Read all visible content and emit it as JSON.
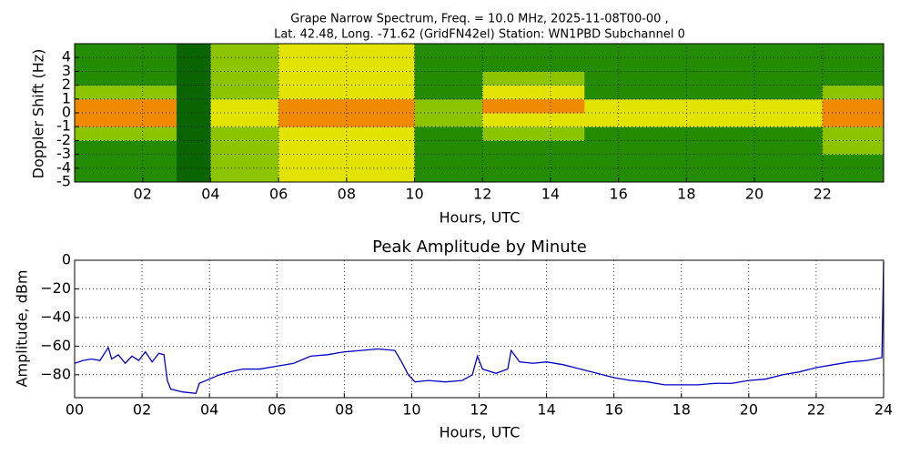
{
  "chart_data": [
    {
      "type": "heatmap",
      "title": [
        "Grape Narrow Spectrum, Freq. = 10.0 MHz, 2025-11-08T00-00 ,",
        "Lat.  42.48, Long. -71.62 (GridFN42el) Station: WN1PBD Subchannel 0"
      ],
      "xlabel": "Hours, UTC",
      "ylabel": "Doppler Shift (Hz)",
      "xlim": [
        0,
        23.8
      ],
      "ylim": [
        -5,
        5
      ],
      "xticks": [
        {
          "value": 2,
          "label": "02"
        },
        {
          "value": 4,
          "label": "04"
        },
        {
          "value": 6,
          "label": "06"
        },
        {
          "value": 8,
          "label": "08"
        },
        {
          "value": 10,
          "label": "10"
        },
        {
          "value": 12,
          "label": "12"
        },
        {
          "value": 14,
          "label": "14"
        },
        {
          "value": 16,
          "label": "16"
        },
        {
          "value": 18,
          "label": "18"
        },
        {
          "value": 20,
          "label": "20"
        },
        {
          "value": 22,
          "label": "22"
        }
      ],
      "yticks": [
        -5,
        -4,
        -3,
        -2,
        -1,
        0,
        1,
        2,
        3,
        4
      ],
      "x_bins": [
        0,
        1,
        2,
        3,
        4,
        5,
        6,
        7,
        8,
        9,
        10,
        11,
        12,
        13,
        14,
        15,
        16,
        17,
        18,
        19,
        20,
        21,
        22,
        23,
        23.8
      ],
      "y_bins": [
        -5,
        -4,
        -3,
        -2,
        -1,
        0,
        1,
        2,
        3,
        4,
        5
      ],
      "colors": [
        "#0a6400",
        "#238c00",
        "#8cc400",
        "#e2e400",
        "#f08a00"
      ],
      "grid": true,
      "values": [
        [
          1,
          1,
          1,
          0,
          2,
          2,
          3,
          3,
          3,
          3,
          1,
          1,
          1,
          1,
          1,
          1,
          1,
          1,
          1,
          1,
          1,
          1,
          1,
          1
        ],
        [
          1,
          1,
          1,
          0,
          2,
          2,
          3,
          3,
          3,
          3,
          1,
          1,
          1,
          1,
          1,
          1,
          1,
          1,
          1,
          1,
          1,
          1,
          1,
          1
        ],
        [
          1,
          1,
          1,
          0,
          2,
          2,
          3,
          3,
          3,
          3,
          1,
          1,
          1,
          1,
          1,
          1,
          1,
          1,
          1,
          1,
          1,
          1,
          2,
          2
        ],
        [
          2,
          2,
          2,
          0,
          2,
          2,
          3,
          3,
          3,
          3,
          1,
          1,
          2,
          2,
          2,
          1,
          1,
          1,
          1,
          1,
          1,
          1,
          2,
          2
        ],
        [
          4,
          4,
          4,
          0,
          3,
          3,
          4,
          4,
          4,
          4,
          2,
          2,
          3,
          3,
          3,
          3,
          3,
          3,
          3,
          3,
          3,
          3,
          4,
          4
        ],
        [
          4,
          4,
          4,
          0,
          3,
          3,
          4,
          4,
          4,
          4,
          2,
          2,
          4,
          4,
          4,
          3,
          3,
          3,
          3,
          3,
          3,
          3,
          4,
          4
        ],
        [
          2,
          2,
          2,
          0,
          2,
          2,
          3,
          3,
          3,
          3,
          1,
          1,
          3,
          3,
          3,
          1,
          1,
          1,
          1,
          1,
          1,
          1,
          2,
          2
        ],
        [
          1,
          1,
          1,
          0,
          2,
          2,
          3,
          3,
          3,
          3,
          1,
          1,
          2,
          2,
          2,
          1,
          1,
          1,
          1,
          1,
          1,
          1,
          1,
          1
        ],
        [
          1,
          1,
          1,
          0,
          2,
          2,
          3,
          3,
          3,
          3,
          1,
          1,
          1,
          1,
          1,
          1,
          1,
          1,
          1,
          1,
          1,
          1,
          1,
          1
        ],
        [
          1,
          1,
          1,
          0,
          2,
          2,
          3,
          3,
          3,
          3,
          1,
          1,
          1,
          1,
          1,
          1,
          1,
          1,
          1,
          1,
          1,
          1,
          1,
          1
        ]
      ]
    },
    {
      "type": "line",
      "title": "Peak Amplitude by Minute",
      "xlabel": "Hours, UTC",
      "ylabel": "Amplitude, dBm",
      "xlim": [
        0,
        24
      ],
      "ylim": [
        -96,
        0
      ],
      "xticks": [
        {
          "value": 0,
          "label": "00"
        },
        {
          "value": 2,
          "label": "02"
        },
        {
          "value": 4,
          "label": "04"
        },
        {
          "value": 6,
          "label": "06"
        },
        {
          "value": 8,
          "label": "08"
        },
        {
          "value": 10,
          "label": "10"
        },
        {
          "value": 12,
          "label": "12"
        },
        {
          "value": 14,
          "label": "14"
        },
        {
          "value": 16,
          "label": "16"
        },
        {
          "value": 18,
          "label": "18"
        },
        {
          "value": 20,
          "label": "20"
        },
        {
          "value": 22,
          "label": "22"
        },
        {
          "value": 24,
          "label": "24"
        }
      ],
      "yticks": [
        0,
        {
          "value": -20,
          "label": "−20"
        },
        {
          "value": -40,
          "label": "−40"
        },
        {
          "value": -60,
          "label": "−60"
        },
        {
          "value": -80,
          "label": "−80"
        }
      ],
      "grid": true,
      "color": "#0000cc",
      "x": [
        0,
        0.25,
        0.5,
        0.75,
        1.0,
        1.1,
        1.3,
        1.5,
        1.7,
        1.9,
        2.1,
        2.3,
        2.5,
        2.65,
        2.75,
        2.85,
        3.2,
        3.6,
        3.7,
        4.0,
        4.3,
        4.6,
        5.0,
        5.5,
        6.0,
        6.5,
        7.0,
        7.5,
        8.0,
        8.5,
        9.0,
        9.5,
        9.7,
        9.9,
        10.1,
        10.5,
        11.0,
        11.5,
        11.8,
        11.95,
        12.1,
        12.5,
        12.85,
        12.95,
        13.2,
        13.6,
        14.0,
        14.5,
        15.0,
        15.5,
        16.0,
        16.5,
        17.0,
        17.5,
        18.0,
        18.5,
        19.0,
        19.5,
        20.0,
        20.5,
        21.0,
        21.5,
        22.0,
        22.5,
        23.0,
        23.5,
        23.95,
        24
      ],
      "values": [
        -72,
        -70,
        -69,
        -70,
        -61,
        -69,
        -66,
        -72,
        -67,
        -70,
        -64,
        -71,
        -65,
        -66,
        -84,
        -90,
        -92,
        -93,
        -86,
        -83,
        -80,
        -78,
        -76,
        -76,
        -74,
        -72,
        -67,
        -66,
        -64,
        -63,
        -62,
        -63,
        -71,
        -80,
        -85,
        -84,
        -85,
        -84,
        -80,
        -67,
        -76,
        -79,
        -76,
        -63,
        -71,
        -72,
        -71,
        -73,
        -76,
        -79,
        -82,
        -84,
        -85,
        -87,
        -87,
        -87,
        -86,
        -86,
        -84,
        -83,
        -80,
        -78,
        -75,
        -73,
        -71,
        -70,
        -68,
        -1
      ]
    }
  ]
}
